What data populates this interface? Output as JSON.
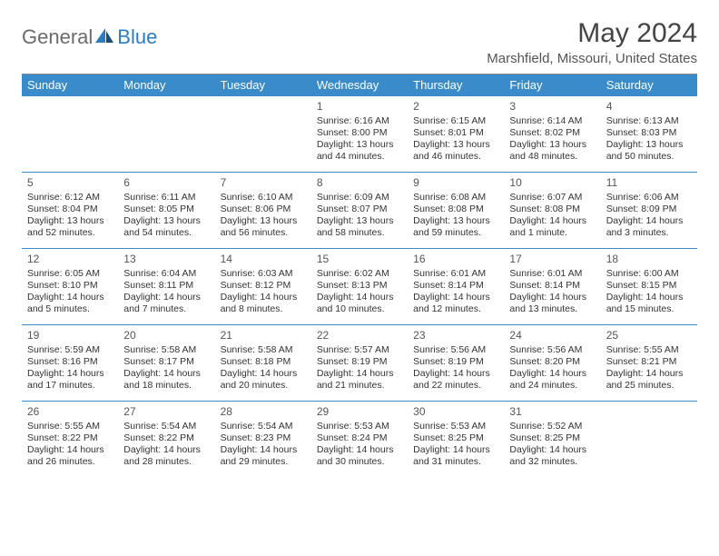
{
  "logo": {
    "general": "General",
    "blue": "Blue"
  },
  "title": "May 2024",
  "location": "Marshfield, Missouri, United States",
  "colors": {
    "header_bg": "#3a8bc9",
    "header_text": "#ffffff",
    "border": "#3a8bc9",
    "logo_gray": "#6b6b6b",
    "logo_blue": "#2f7bbf",
    "text": "#333333",
    "title_text": "#444444"
  },
  "day_headers": [
    "Sunday",
    "Monday",
    "Tuesday",
    "Wednesday",
    "Thursday",
    "Friday",
    "Saturday"
  ],
  "weeks": [
    [
      null,
      null,
      null,
      {
        "n": "1",
        "sunrise": "6:16 AM",
        "sunset": "8:00 PM",
        "daylight": "13 hours and 44 minutes."
      },
      {
        "n": "2",
        "sunrise": "6:15 AM",
        "sunset": "8:01 PM",
        "daylight": "13 hours and 46 minutes."
      },
      {
        "n": "3",
        "sunrise": "6:14 AM",
        "sunset": "8:02 PM",
        "daylight": "13 hours and 48 minutes."
      },
      {
        "n": "4",
        "sunrise": "6:13 AM",
        "sunset": "8:03 PM",
        "daylight": "13 hours and 50 minutes."
      }
    ],
    [
      {
        "n": "5",
        "sunrise": "6:12 AM",
        "sunset": "8:04 PM",
        "daylight": "13 hours and 52 minutes."
      },
      {
        "n": "6",
        "sunrise": "6:11 AM",
        "sunset": "8:05 PM",
        "daylight": "13 hours and 54 minutes."
      },
      {
        "n": "7",
        "sunrise": "6:10 AM",
        "sunset": "8:06 PM",
        "daylight": "13 hours and 56 minutes."
      },
      {
        "n": "8",
        "sunrise": "6:09 AM",
        "sunset": "8:07 PM",
        "daylight": "13 hours and 58 minutes."
      },
      {
        "n": "9",
        "sunrise": "6:08 AM",
        "sunset": "8:08 PM",
        "daylight": "13 hours and 59 minutes."
      },
      {
        "n": "10",
        "sunrise": "6:07 AM",
        "sunset": "8:08 PM",
        "daylight": "14 hours and 1 minute."
      },
      {
        "n": "11",
        "sunrise": "6:06 AM",
        "sunset": "8:09 PM",
        "daylight": "14 hours and 3 minutes."
      }
    ],
    [
      {
        "n": "12",
        "sunrise": "6:05 AM",
        "sunset": "8:10 PM",
        "daylight": "14 hours and 5 minutes."
      },
      {
        "n": "13",
        "sunrise": "6:04 AM",
        "sunset": "8:11 PM",
        "daylight": "14 hours and 7 minutes."
      },
      {
        "n": "14",
        "sunrise": "6:03 AM",
        "sunset": "8:12 PM",
        "daylight": "14 hours and 8 minutes."
      },
      {
        "n": "15",
        "sunrise": "6:02 AM",
        "sunset": "8:13 PM",
        "daylight": "14 hours and 10 minutes."
      },
      {
        "n": "16",
        "sunrise": "6:01 AM",
        "sunset": "8:14 PM",
        "daylight": "14 hours and 12 minutes."
      },
      {
        "n": "17",
        "sunrise": "6:01 AM",
        "sunset": "8:14 PM",
        "daylight": "14 hours and 13 minutes."
      },
      {
        "n": "18",
        "sunrise": "6:00 AM",
        "sunset": "8:15 PM",
        "daylight": "14 hours and 15 minutes."
      }
    ],
    [
      {
        "n": "19",
        "sunrise": "5:59 AM",
        "sunset": "8:16 PM",
        "daylight": "14 hours and 17 minutes."
      },
      {
        "n": "20",
        "sunrise": "5:58 AM",
        "sunset": "8:17 PM",
        "daylight": "14 hours and 18 minutes."
      },
      {
        "n": "21",
        "sunrise": "5:58 AM",
        "sunset": "8:18 PM",
        "daylight": "14 hours and 20 minutes."
      },
      {
        "n": "22",
        "sunrise": "5:57 AM",
        "sunset": "8:19 PM",
        "daylight": "14 hours and 21 minutes."
      },
      {
        "n": "23",
        "sunrise": "5:56 AM",
        "sunset": "8:19 PM",
        "daylight": "14 hours and 22 minutes."
      },
      {
        "n": "24",
        "sunrise": "5:56 AM",
        "sunset": "8:20 PM",
        "daylight": "14 hours and 24 minutes."
      },
      {
        "n": "25",
        "sunrise": "5:55 AM",
        "sunset": "8:21 PM",
        "daylight": "14 hours and 25 minutes."
      }
    ],
    [
      {
        "n": "26",
        "sunrise": "5:55 AM",
        "sunset": "8:22 PM",
        "daylight": "14 hours and 26 minutes."
      },
      {
        "n": "27",
        "sunrise": "5:54 AM",
        "sunset": "8:22 PM",
        "daylight": "14 hours and 28 minutes."
      },
      {
        "n": "28",
        "sunrise": "5:54 AM",
        "sunset": "8:23 PM",
        "daylight": "14 hours and 29 minutes."
      },
      {
        "n": "29",
        "sunrise": "5:53 AM",
        "sunset": "8:24 PM",
        "daylight": "14 hours and 30 minutes."
      },
      {
        "n": "30",
        "sunrise": "5:53 AM",
        "sunset": "8:25 PM",
        "daylight": "14 hours and 31 minutes."
      },
      {
        "n": "31",
        "sunrise": "5:52 AM",
        "sunset": "8:25 PM",
        "daylight": "14 hours and 32 minutes."
      },
      null
    ]
  ],
  "labels": {
    "sunrise": "Sunrise:",
    "sunset": "Sunset:",
    "daylight": "Daylight:"
  }
}
